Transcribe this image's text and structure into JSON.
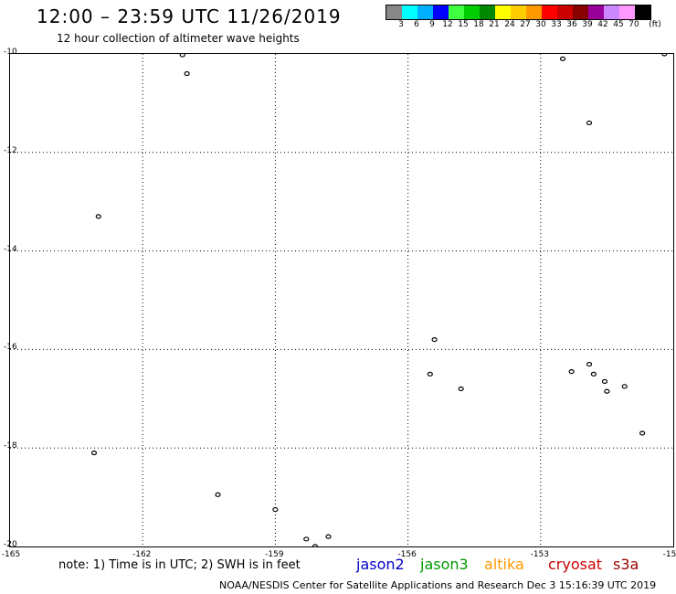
{
  "title": "12:00 – 23:59 UTC 11/26/2019",
  "subtitle": "12 hour collection of altimeter wave heights",
  "colorbar": {
    "colors": [
      "#888888",
      "#00ffff",
      "#00b0ff",
      "#0000ff",
      "#40ff40",
      "#00cc00",
      "#008800",
      "#ffff00",
      "#ffcc00",
      "#ff9900",
      "#ff0000",
      "#cc0000",
      "#880000",
      "#990099",
      "#cc88ff",
      "#ff99ff",
      "#000000"
    ],
    "labels": [
      "3",
      "6",
      "9",
      "12",
      "15",
      "18",
      "21",
      "24",
      "27",
      "30",
      "33",
      "36",
      "39",
      "42",
      "45",
      "70",
      "(ft)"
    ]
  },
  "axes": {
    "y_labels": [
      "-10",
      "-12",
      "-14",
      "-16",
      "-18",
      "-20"
    ],
    "x_labels": [
      "-165",
      "-162",
      "-159",
      "-156",
      "-153",
      "-15"
    ]
  },
  "note": "note: 1) Time is in UTC; 2) SWH is in feet",
  "satellites": [
    {
      "name": "jason2",
      "color": "#0000cc"
    },
    {
      "name": "jason3",
      "color": "#009900"
    },
    {
      "name": "altika",
      "color": "#ff9900"
    },
    {
      "name": "cryosat",
      "color": "#cc0000"
    },
    {
      "name": "s3a",
      "color": "#990000"
    }
  ],
  "credit": "NOAA/NESDIS Center for Satellite Applications and Research    Dec  3 15:16:39 UTC 2019",
  "islands": [
    {
      "lon": -161.1,
      "lat": -10.02
    },
    {
      "lon": -161.0,
      "lat": -10.4
    },
    {
      "lon": -163.0,
      "lat": -13.3
    },
    {
      "lon": -163.1,
      "lat": -18.1
    },
    {
      "lon": -160.3,
      "lat": -18.95
    },
    {
      "lon": -159.0,
      "lat": -19.25
    },
    {
      "lon": -158.3,
      "lat": -19.85
    },
    {
      "lon": -157.8,
      "lat": -19.8
    },
    {
      "lon": -158.1,
      "lat": -20.0
    },
    {
      "lon": -155.5,
      "lat": -16.5
    },
    {
      "lon": -155.4,
      "lat": -15.8
    },
    {
      "lon": -154.8,
      "lat": -16.8
    },
    {
      "lon": -152.5,
      "lat": -10.1
    },
    {
      "lon": -151.9,
      "lat": -11.4
    },
    {
      "lon": -152.3,
      "lat": -16.45
    },
    {
      "lon": -151.9,
      "lat": -16.3
    },
    {
      "lon": -151.8,
      "lat": -16.5
    },
    {
      "lon": -151.55,
      "lat": -16.65
    },
    {
      "lon": -151.5,
      "lat": -16.85
    },
    {
      "lon": -151.1,
      "lat": -16.75
    },
    {
      "lon": -150.7,
      "lat": -17.7
    },
    {
      "lon": -150.2,
      "lat": -10.0
    }
  ]
}
